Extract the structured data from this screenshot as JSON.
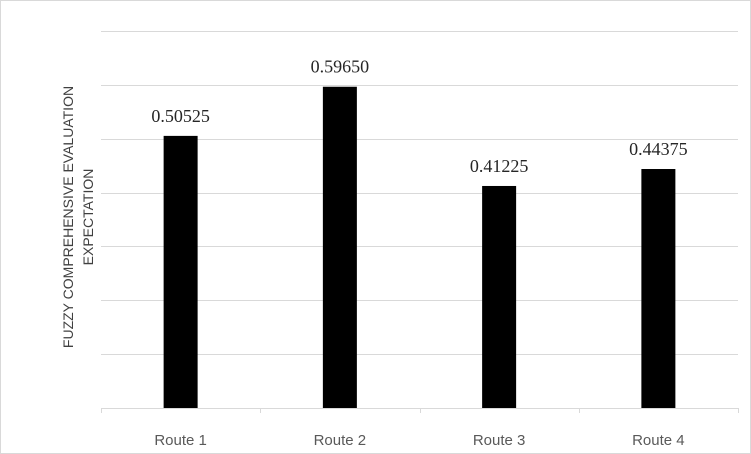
{
  "chart_data": {
    "type": "bar",
    "title": "",
    "xlabel": "",
    "ylabel": [
      "FUZZY COMPREHENSIVE EVALUATION",
      "EXPECTATION"
    ],
    "categories": [
      "Route 1",
      "Route 2",
      "Route 3",
      "Route 4"
    ],
    "values": [
      0.50525,
      0.5965,
      0.41225,
      0.44375
    ],
    "value_labels": [
      "0.50525",
      "0.59650",
      "0.41225",
      "0.44375"
    ],
    "ylim": [
      0,
      0.7
    ],
    "y_tick_labels_visible": false,
    "grid": true,
    "legend": "none",
    "bar_color": "#000000",
    "grid_color": "#d9d9d9"
  }
}
